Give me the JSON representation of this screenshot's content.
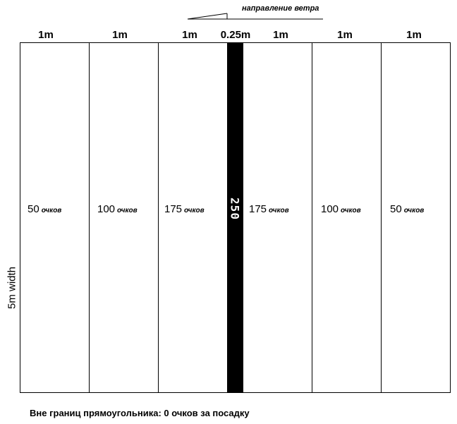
{
  "wind": {
    "label": "направление ветра"
  },
  "column_labels": [
    "1m",
    "1m",
    "1m",
    "0.25m",
    "1m",
    "1m",
    "1m"
  ],
  "zones": [
    {
      "points": "50",
      "unit": "очков"
    },
    {
      "points": "100",
      "unit": "очков"
    },
    {
      "points": "175",
      "unit": "очков"
    },
    {
      "points": "175",
      "unit": "очков"
    },
    {
      "points": "100",
      "unit": "очков"
    },
    {
      "points": "50",
      "unit": "очков"
    }
  ],
  "center_strip": {
    "points": "250"
  },
  "width_label": "5m width",
  "footer": "Вне границ прямоугольника: 0 очков за посадку"
}
